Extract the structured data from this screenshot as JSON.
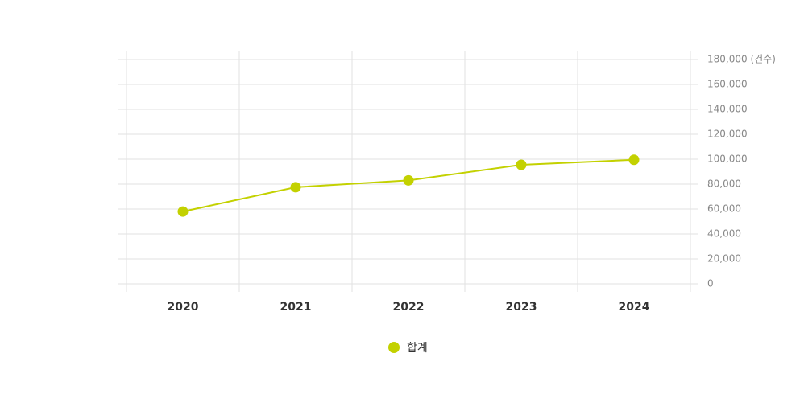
{
  "chart_data": {
    "type": "line",
    "categories": [
      "2020",
      "2021",
      "2022",
      "2023",
      "2024"
    ],
    "series": [
      {
        "name": "합계",
        "color": "#c3d100",
        "values": [
          58000,
          77500,
          83000,
          95500,
          99500
        ]
      }
    ],
    "ylim": [
      0,
      180000
    ],
    "yticks": [
      0,
      {
        "value": 20000,
        "label": "20,000"
      },
      {
        "value": 40000,
        "label": "40,000"
      },
      {
        "value": 60000,
        "label": "60,000"
      },
      {
        "value": 80000,
        "label": "80,000"
      },
      {
        "value": 100000,
        "label": "100,000"
      },
      {
        "value": 120000,
        "label": "120,000"
      },
      {
        "value": 140000,
        "label": "140,000"
      },
      {
        "value": 160000,
        "label": "160,000"
      },
      {
        "value": 180000,
        "label": "180,000 (건수)"
      }
    ],
    "y_axis_side": "right",
    "grid": true
  }
}
